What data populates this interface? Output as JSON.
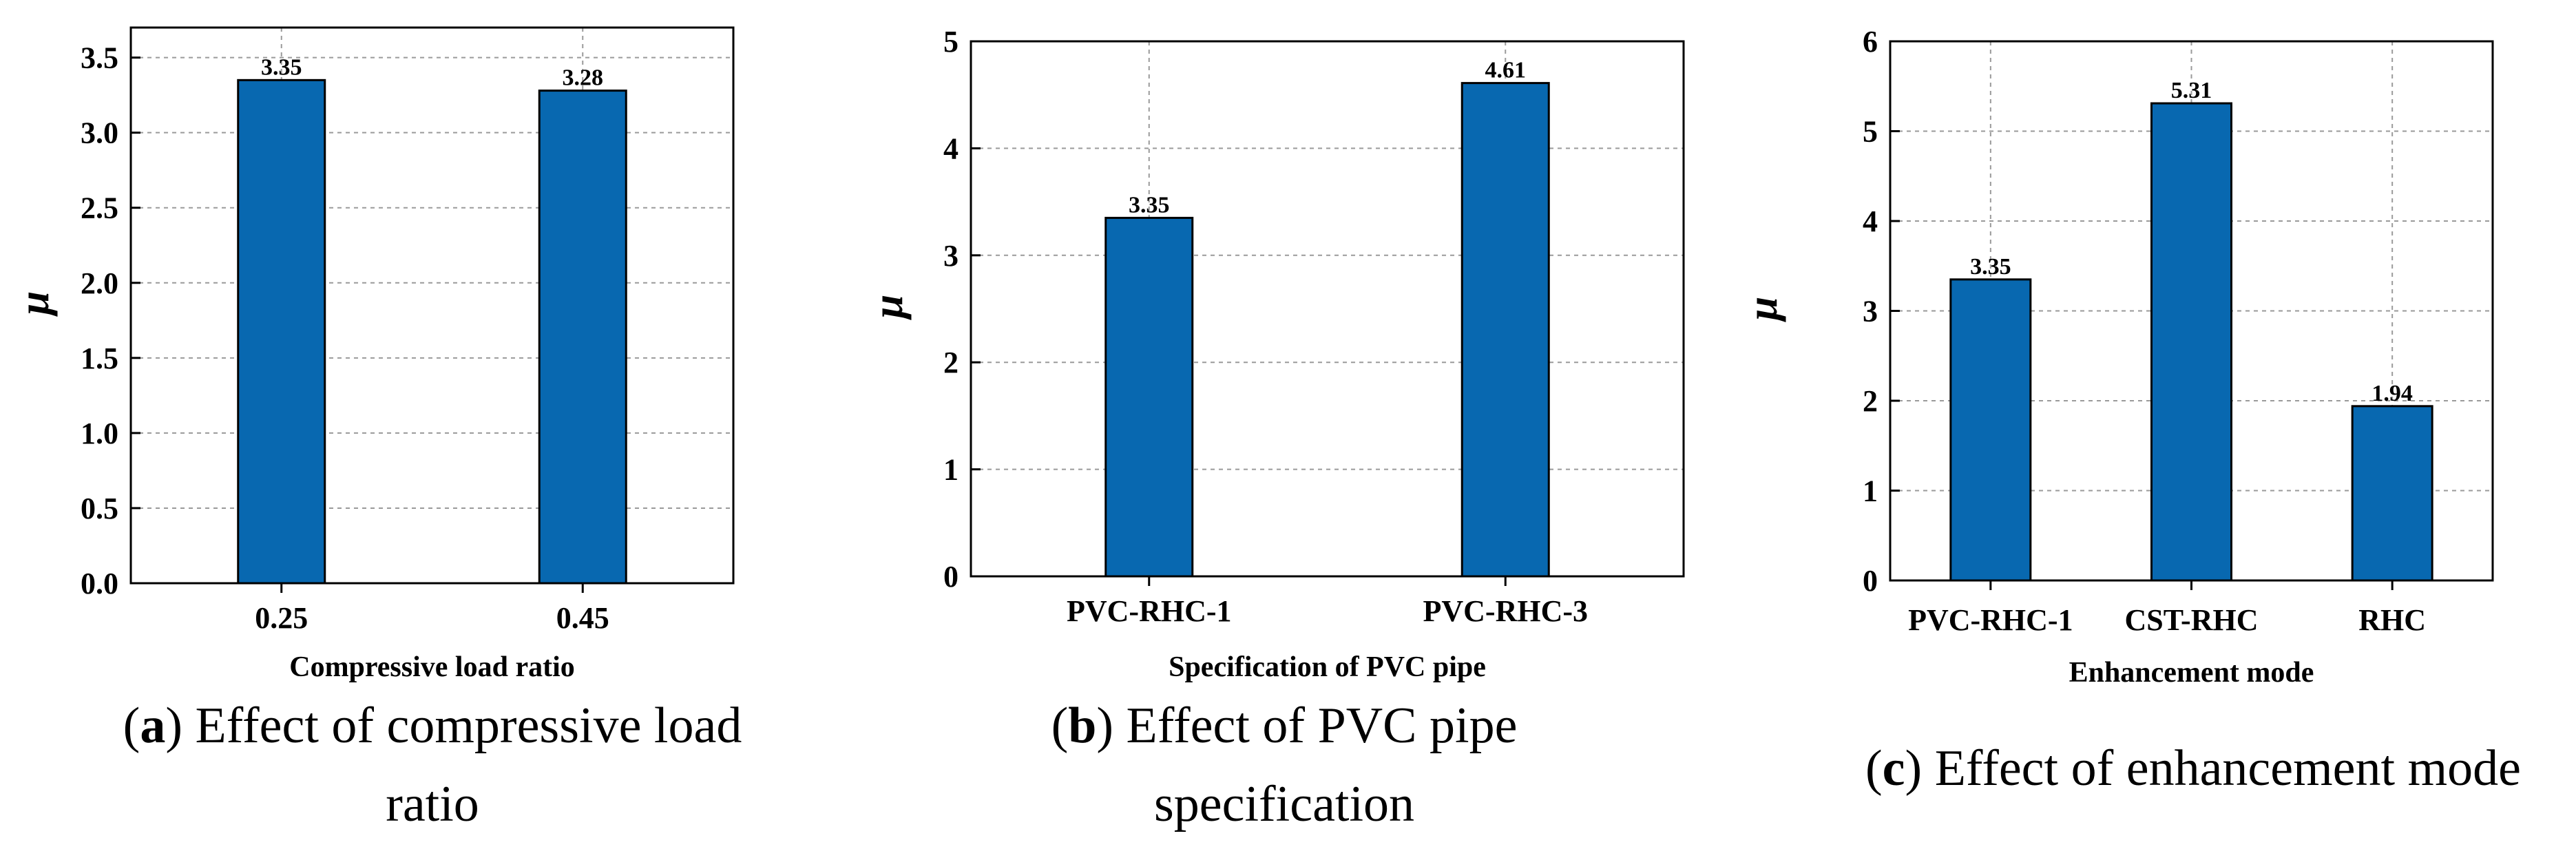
{
  "chart_data": [
    {
      "type": "bar",
      "panel_letter": "a",
      "caption_lines": [
        "Effect of compressive load",
        "ratio"
      ],
      "categories": [
        "0.25",
        "0.45"
      ],
      "values": [
        3.35,
        3.28
      ],
      "data_labels": [
        "3.35",
        "3.28"
      ],
      "xlabel": "Compressive load ratio",
      "ylabel": "μ",
      "ylim": [
        0,
        3.7
      ],
      "yticks": [
        "0.0",
        "0.5",
        "1.0",
        "1.5",
        "2.0",
        "2.5",
        "3.0",
        "3.5"
      ],
      "grid": true,
      "color": "#0868b0"
    },
    {
      "type": "bar",
      "panel_letter": "b",
      "caption_lines": [
        "Effect of PVC pipe",
        "specification"
      ],
      "categories": [
        "PVC-RHC-1",
        "PVC-RHC-3"
      ],
      "values": [
        3.35,
        4.61
      ],
      "data_labels": [
        "3.35",
        "4.61"
      ],
      "xlabel": "Specification of PVC pipe",
      "ylabel": "μ",
      "ylim": [
        0,
        5
      ],
      "yticks": [
        "0",
        "1",
        "2",
        "3",
        "4",
        "5"
      ],
      "grid": true,
      "color": "#0868b0"
    },
    {
      "type": "bar",
      "panel_letter": "c",
      "caption_lines": [
        "Effect of enhancement mode"
      ],
      "categories": [
        "PVC-RHC-1",
        "CST-RHC",
        "RHC"
      ],
      "values": [
        3.35,
        5.31,
        1.94
      ],
      "data_labels": [
        "3.35",
        "5.31",
        "1.94"
      ],
      "xlabel": "Enhancement mode",
      "ylabel": "μ",
      "ylim": [
        0,
        6
      ],
      "yticks": [
        "0",
        "1",
        "2",
        "3",
        "4",
        "5",
        "6"
      ],
      "grid": true,
      "color": "#0868b0"
    }
  ]
}
